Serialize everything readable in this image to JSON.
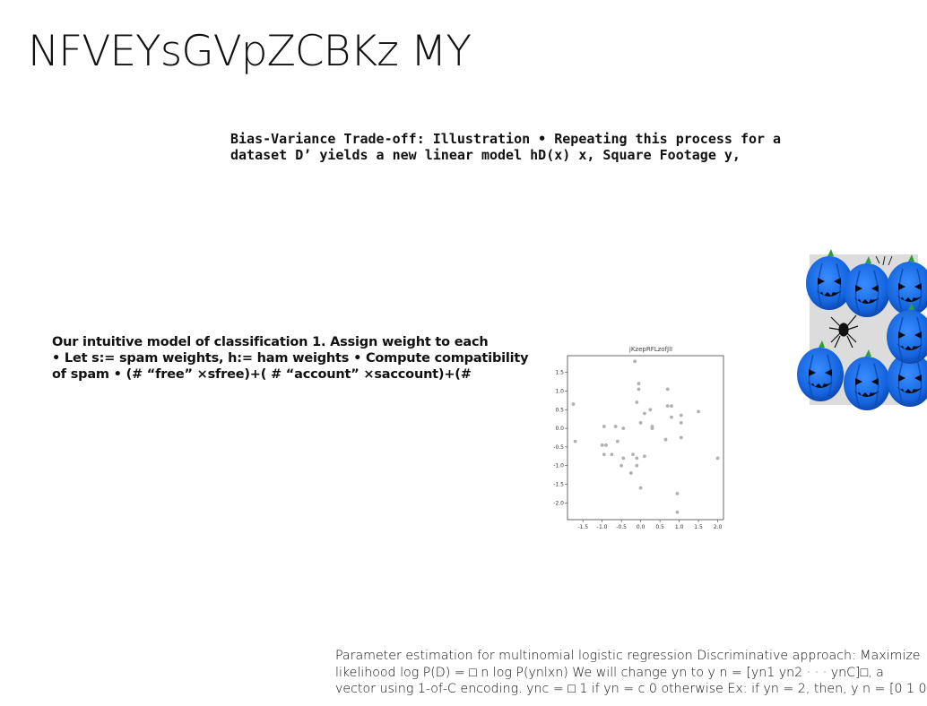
{
  "slide": {
    "title": "NFVEYsGVpZCBKz MY",
    "bias_block": [
      "Bias-Variance Trade-off: Illustration • Repeating this process for a",
      "dataset D’ yields a new linear model hD(x) x, Square Footage y,"
    ],
    "spam_block": [
      "Our intuitive model of classification 1. Assign weight to each",
      "• Let s:= spam weights, h:= ham weights • Compute compatibility",
      "of spam • (# “free” ×sfree)+( # “account” ×saccount)+(#"
    ],
    "param_block": [
      "Parameter estimation for multinomial logistic regression Discriminative approach: Maximize",
      "likelihood log P(D) = □ n log P(ynlxn) We will change yn to y n = [yn1 yn2 · · · ynC]□, a",
      "vector using 1-of-C encoding. ync = □ 1 if yn = c 0 otherwise Ex: if yn = 2, then, y n = [0 1 0"
    ],
    "image_subject": "blue jack-o-lantern pumpkins with spider"
  },
  "chart_data": {
    "type": "scatter",
    "title": "jKzepRFLzofJlI",
    "xlabel": "",
    "ylabel": "",
    "xlim": [
      -1.9,
      2.15
    ],
    "ylim": [
      -2.45,
      1.95
    ],
    "xticks": [
      "-1.5",
      "-1.0",
      "-0.5",
      "0.0",
      "0.5",
      "1.0",
      "1.5",
      "2.0"
    ],
    "xtick_values": [
      -1.5,
      -1.0,
      -0.5,
      0.0,
      0.5,
      1.0,
      1.5,
      2.0
    ],
    "yticks": [
      "1.5",
      "1.0",
      "0.5",
      "0.0",
      "-0.5",
      "-1.0",
      "-1.5",
      "-2.0"
    ],
    "ytick_values": [
      1.5,
      1.0,
      0.5,
      0.0,
      -0.5,
      -1.0,
      -1.5,
      -2.0
    ],
    "grid": false,
    "point_color": "#b0b0b0",
    "points": [
      [
        -1.75,
        0.65
      ],
      [
        -1.7,
        -0.35
      ],
      [
        -1.0,
        -0.45
      ],
      [
        -0.95,
        0.05
      ],
      [
        -0.95,
        -0.7
      ],
      [
        -0.9,
        -0.45
      ],
      [
        -0.75,
        -0.7
      ],
      [
        -0.65,
        0.05
      ],
      [
        -0.6,
        -0.35
      ],
      [
        -0.5,
        -1.0
      ],
      [
        -0.45,
        0.0
      ],
      [
        -0.45,
        -0.8
      ],
      [
        -0.25,
        -1.2
      ],
      [
        -0.2,
        -0.7
      ],
      [
        -0.15,
        1.8
      ],
      [
        -0.1,
        0.7
      ],
      [
        -0.1,
        -0.8
      ],
      [
        -0.1,
        -1.0
      ],
      [
        -0.05,
        1.2
      ],
      [
        -0.05,
        1.05
      ],
      [
        0.0,
        -1.6
      ],
      [
        0.0,
        0.15
      ],
      [
        0.1,
        0.4
      ],
      [
        0.1,
        -0.75
      ],
      [
        0.25,
        0.5
      ],
      [
        0.3,
        0.05
      ],
      [
        0.3,
        0.0
      ],
      [
        0.65,
        -0.3
      ],
      [
        0.7,
        1.05
      ],
      [
        0.7,
        0.6
      ],
      [
        0.8,
        0.6
      ],
      [
        0.8,
        0.3
      ],
      [
        0.95,
        -1.75
      ],
      [
        0.95,
        -2.25
      ],
      [
        1.05,
        0.35
      ],
      [
        1.05,
        0.15
      ],
      [
        1.05,
        -0.25
      ],
      [
        1.5,
        0.45
      ],
      [
        2.0,
        -0.8
      ]
    ]
  }
}
